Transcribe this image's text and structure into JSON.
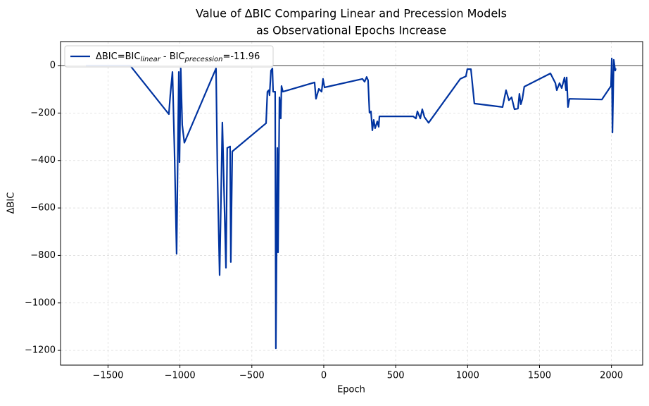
{
  "chart_data": {
    "type": "line",
    "title": [
      "Value of ΔBIC Comparing Linear and Precession Models",
      "as Observational Epochs Increase"
    ],
    "x_label": "Epoch",
    "y_label": "ΔBIC",
    "x": [
      -1654,
      -1346,
      -1077,
      -1067,
      -1052,
      -1038,
      -1023,
      -1008,
      -1003,
      -994,
      -984,
      -969,
      -749,
      -739,
      -724,
      -705,
      -680,
      -671,
      -651,
      -646,
      -636,
      -401,
      -392,
      -382,
      -377,
      -367,
      -357,
      -352,
      -338,
      -333,
      -323,
      -318,
      -308,
      -299,
      -294,
      -284,
      -64,
      -54,
      -34,
      -15,
      -5,
      5,
      269,
      284,
      298,
      308,
      318,
      328,
      338,
      347,
      357,
      372,
      382,
      387,
      622,
      641,
      651,
      671,
      685,
      700,
      729,
      949,
      988,
      998,
      1023,
      1047,
      1243,
      1267,
      1287,
      1306,
      1326,
      1350,
      1360,
      1370,
      1380,
      1394,
      1576,
      1610,
      1620,
      1639,
      1654,
      1674,
      1684,
      1689,
      1698,
      1708,
      1933,
      1997,
      2002,
      2007,
      2016,
      2026,
      2030
    ],
    "series": [
      {
        "name": [
          "ΔBIC=BIC",
          "linear",
          " - BIC",
          "precession",
          "=-11.96"
        ],
        "color": "#0033a0",
        "values": [
          0,
          0,
          -205,
          -125,
          -27,
          -350,
          -793,
          -27,
          -407,
          -12,
          -250,
          -325,
          -12,
          -450,
          -883,
          -240,
          -852,
          -347,
          -341,
          -828,
          -362,
          -243,
          -110,
          -104,
          -125,
          -21,
          -12,
          -110,
          -110,
          -1191,
          -347,
          -787,
          -134,
          -223,
          -86,
          -110,
          -71,
          -140,
          -98,
          -110,
          -56,
          -92,
          -56,
          -68,
          -48,
          -62,
          -199,
          -193,
          -273,
          -229,
          -264,
          -235,
          -258,
          -214,
          -214,
          -223,
          -193,
          -223,
          -184,
          -217,
          -241,
          -56,
          -45,
          -15,
          -15,
          -160,
          -175,
          -104,
          -146,
          -134,
          -184,
          -181,
          -119,
          -163,
          -142,
          -89,
          -33,
          -74,
          -104,
          -74,
          -95,
          -50,
          -104,
          -50,
          -175,
          -140,
          -143,
          -86,
          30,
          -282,
          24,
          -21,
          -12
        ]
      }
    ],
    "xlim": [
      -1830,
      2217
    ],
    "ylim": [
      -1262,
      101
    ],
    "xticks": [
      {
        "value": -1500,
        "label": "−1500"
      },
      {
        "value": -1000,
        "label": "−1000"
      },
      {
        "value": -500,
        "label": "−500"
      },
      0,
      500,
      1000,
      1500,
      2000
    ],
    "yticks": [
      {
        "value": -1200,
        "label": "−1200"
      },
      {
        "value": -1000,
        "label": "−1000"
      },
      {
        "value": -800,
        "label": "−800"
      },
      {
        "value": -600,
        "label": "−600"
      },
      {
        "value": -400,
        "label": "−400"
      },
      {
        "value": -200,
        "label": "−200"
      },
      0
    ],
    "hline": 0,
    "grid": true,
    "legend": "upper left"
  }
}
